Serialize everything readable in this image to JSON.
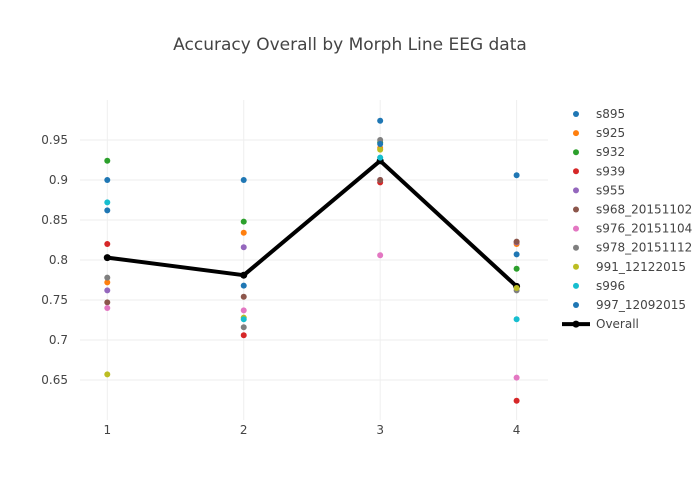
{
  "chart_data": {
    "type": "scatter",
    "title": "Accuracy Overall by Morph Line EEG data",
    "xlabel": "",
    "ylabel": "",
    "x": [
      1,
      2,
      3,
      4
    ],
    "x_ticks": [
      "1",
      "2",
      "3",
      "4"
    ],
    "xlim": [
      0.8,
      4.23
    ],
    "y_ticks": [
      "0.65",
      "0.7",
      "0.75",
      "0.8",
      "0.85",
      "0.9",
      "0.95"
    ],
    "ylim": [
      0.6,
      1.0
    ],
    "grid": true,
    "legend_position": "right",
    "series": [
      {
        "name": "s895",
        "mode": "markers",
        "color": "#1f77b4",
        "values": [
          0.862,
          0.768,
          0.974,
          0.807
        ]
      },
      {
        "name": "s925",
        "mode": "markers",
        "color": "#ff7f0e",
        "values": [
          0.772,
          0.834,
          0.94,
          0.82
        ]
      },
      {
        "name": "s932",
        "mode": "markers",
        "color": "#2ca02c",
        "values": [
          0.924,
          0.848,
          0.947,
          0.789
        ]
      },
      {
        "name": "s939",
        "mode": "markers",
        "color": "#d62728",
        "values": [
          0.82,
          0.706,
          0.897,
          0.624
        ]
      },
      {
        "name": "s955",
        "mode": "markers",
        "color": "#9467bd",
        "values": [
          0.762,
          0.816,
          0.9,
          0.822
        ]
      },
      {
        "name": "s968_20151102",
        "mode": "markers",
        "color": "#8c564b",
        "values": [
          0.747,
          0.754,
          0.9,
          0.823
        ]
      },
      {
        "name": "s976_20151104",
        "mode": "markers",
        "color": "#e377c2",
        "values": [
          0.74,
          0.737,
          0.806,
          0.653
        ]
      },
      {
        "name": "s978_20151112",
        "mode": "markers",
        "color": "#7f7f7f",
        "values": [
          0.778,
          0.716,
          0.95,
          0.762
        ]
      },
      {
        "name": "991_12122015",
        "mode": "markers",
        "color": "#bcbd22",
        "values": [
          0.657,
          0.728,
          0.938,
          0.765
        ]
      },
      {
        "name": "s996",
        "mode": "markers",
        "color": "#17becf",
        "values": [
          0.872,
          0.726,
          0.928,
          0.726
        ]
      },
      {
        "name": "997_12092015",
        "mode": "markers",
        "color": "#1f77b4",
        "values": [
          0.9,
          0.9,
          0.945,
          0.906
        ]
      },
      {
        "name": "Overall",
        "mode": "lines+markers",
        "color": "#000000",
        "values": [
          0.803,
          0.781,
          0.924,
          0.767
        ]
      }
    ]
  }
}
